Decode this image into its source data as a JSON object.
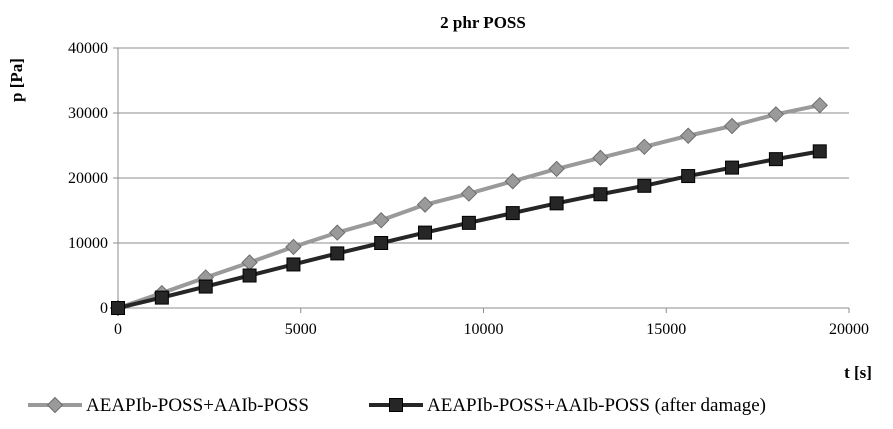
{
  "chart_data": {
    "type": "line",
    "title": "2 phr POSS",
    "xlabel": "t [s]",
    "ylabel": "p [Pa]",
    "xlim": [
      0,
      20000
    ],
    "ylim": [
      0,
      40000
    ],
    "x_ticks": [
      0,
      5000,
      10000,
      15000,
      20000
    ],
    "y_ticks": [
      0,
      10000,
      20000,
      30000,
      40000
    ],
    "grid": "horizontal",
    "legend_position": "bottom",
    "series": [
      {
        "name": "AEAPIb-POSS+AAIb-POSS",
        "color": "#9a9a9a",
        "marker": "diamond",
        "x": [
          0,
          1200,
          2400,
          3600,
          4800,
          6000,
          7200,
          8400,
          9600,
          10800,
          12000,
          13200,
          14400,
          15600,
          16800,
          18000,
          19200
        ],
        "y": [
          0,
          2300,
          4700,
          7000,
          9400,
          11600,
          13500,
          15900,
          17600,
          19500,
          21400,
          23100,
          24800,
          26500,
          28000,
          29800,
          31200
        ]
      },
      {
        "name": "AEAPIb-POSS+AAIb-POSS (after damage)",
        "color": "#262626",
        "marker": "square",
        "x": [
          0,
          1200,
          2400,
          3600,
          4800,
          6000,
          7200,
          8400,
          9600,
          10800,
          12000,
          13200,
          14400,
          15600,
          16800,
          18000,
          19200
        ],
        "y": [
          0,
          1600,
          3300,
          5000,
          6700,
          8400,
          10000,
          11600,
          13100,
          14600,
          16100,
          17500,
          18800,
          20300,
          21600,
          22900,
          24100
        ]
      }
    ]
  }
}
